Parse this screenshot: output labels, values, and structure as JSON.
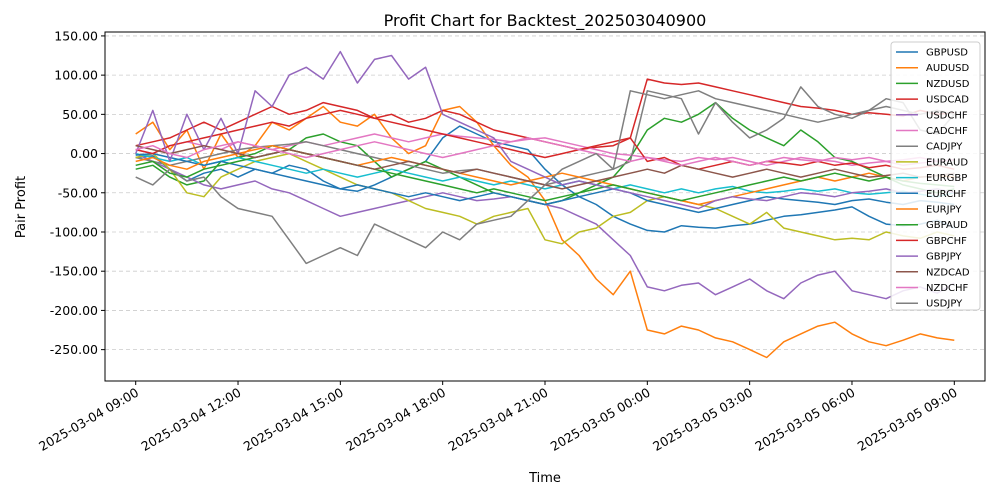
{
  "chart_data": {
    "type": "line",
    "title": "Profit Chart for Backtest_202503040900",
    "xlabel": "Time",
    "ylabel": "Pair Profit",
    "xlim": [
      "2025-03-04 08:06",
      "2025-03-05 09:54"
    ],
    "ylim": [
      -290,
      155
    ],
    "x_ticks": [
      "2025-03-04 09:00",
      "2025-03-04 12:00",
      "2025-03-04 15:00",
      "2025-03-04 18:00",
      "2025-03-04 21:00",
      "2025-03-05 00:00",
      "2025-03-05 03:00",
      "2025-03-05 06:00",
      "2025-03-05 09:00"
    ],
    "y_ticks": [
      "150.00",
      "100.00",
      "50.00",
      "0.00",
      "-50.00",
      "-100.00",
      "-150.00",
      "-200.00",
      "-250.00"
    ],
    "grid": "horizontal dashed",
    "legend_position": "top-right",
    "x": [
      "2025-03-04 09:00",
      "2025-03-04 09:30",
      "2025-03-04 10:00",
      "2025-03-04 10:30",
      "2025-03-04 11:00",
      "2025-03-04 11:30",
      "2025-03-04 12:00",
      "2025-03-04 12:30",
      "2025-03-04 13:00",
      "2025-03-04 13:30",
      "2025-03-04 14:00",
      "2025-03-04 14:30",
      "2025-03-04 15:00",
      "2025-03-04 15:30",
      "2025-03-04 16:00",
      "2025-03-04 16:30",
      "2025-03-04 17:00",
      "2025-03-04 17:30",
      "2025-03-04 18:00",
      "2025-03-04 18:30",
      "2025-03-04 19:00",
      "2025-03-04 19:30",
      "2025-03-04 20:00",
      "2025-03-04 20:30",
      "2025-03-04 21:00",
      "2025-03-04 21:30",
      "2025-03-04 22:00",
      "2025-03-04 22:30",
      "2025-03-04 23:00",
      "2025-03-04 23:30",
      "2025-03-05 00:00",
      "2025-03-05 00:30",
      "2025-03-05 01:00",
      "2025-03-05 01:30",
      "2025-03-05 02:00",
      "2025-03-05 02:30",
      "2025-03-05 03:00",
      "2025-03-05 03:30",
      "2025-03-05 04:00",
      "2025-03-05 04:30",
      "2025-03-05 05:00",
      "2025-03-05 05:30",
      "2025-03-05 06:00",
      "2025-03-05 06:30",
      "2025-03-05 07:00",
      "2025-03-05 07:30",
      "2025-03-05 08:00",
      "2025-03-05 08:30",
      "2025-03-05 09:00"
    ],
    "series": [
      {
        "name": "GBPUSD",
        "color": "#1f77b4",
        "values": [
          -5,
          -3,
          -20,
          -35,
          -25,
          -20,
          -30,
          -20,
          -25,
          -15,
          -20,
          -35,
          -45,
          -48,
          -40,
          -30,
          -20,
          -10,
          20,
          35,
          25,
          15,
          10,
          5,
          -20,
          -40,
          -55,
          -65,
          -80,
          -90,
          -98,
          -100,
          -92,
          -94,
          -95,
          -92,
          -90,
          -85,
          -80,
          -78,
          -75,
          -72,
          -68,
          -80,
          -90,
          -92,
          -90,
          -85,
          -95
        ]
      },
      {
        "name": "AUDUSD",
        "color": "#ff7f0e",
        "values": [
          25,
          40,
          5,
          30,
          -20,
          25,
          -5,
          10,
          40,
          30,
          45,
          60,
          40,
          35,
          50,
          20,
          0,
          10,
          55,
          60,
          40,
          10,
          -15,
          -30,
          -60,
          -110,
          -130,
          -160,
          -180,
          -150,
          -225,
          -230,
          -220,
          -225,
          -235,
          -240,
          -250,
          -260,
          -240,
          -230,
          -220,
          -215,
          -230,
          -240,
          -245,
          -238,
          -230,
          -235,
          -238
        ]
      },
      {
        "name": "NZDUSD",
        "color": "#2ca02c",
        "values": [
          -20,
          -15,
          -30,
          -40,
          -35,
          -10,
          -5,
          0,
          10,
          5,
          20,
          25,
          15,
          10,
          -10,
          -30,
          -20,
          -10,
          -20,
          -30,
          -40,
          -50,
          -55,
          -60,
          -65,
          -60,
          -50,
          -40,
          -30,
          -5,
          30,
          45,
          40,
          50,
          65,
          45,
          30,
          20,
          10,
          30,
          15,
          -5,
          -10,
          -20,
          -30,
          -40,
          -45,
          -50,
          -45
        ]
      },
      {
        "name": "USDCAD",
        "color": "#d62728",
        "values": [
          10,
          15,
          20,
          30,
          40,
          30,
          40,
          50,
          60,
          50,
          55,
          65,
          60,
          55,
          45,
          50,
          40,
          45,
          55,
          50,
          40,
          30,
          25,
          20,
          15,
          10,
          5,
          8,
          10,
          20,
          95,
          90,
          88,
          90,
          85,
          80,
          75,
          70,
          65,
          60,
          58,
          55,
          50,
          52,
          50,
          48,
          55,
          50,
          52
        ]
      },
      {
        "name": "USDCHF",
        "color": "#9467bd",
        "values": [
          0,
          -10,
          -20,
          -30,
          -40,
          -45,
          -40,
          -35,
          -45,
          -50,
          -60,
          -70,
          -80,
          -75,
          -70,
          -65,
          -60,
          -55,
          -50,
          -55,
          -60,
          -58,
          -55,
          -60,
          -65,
          -70,
          -80,
          -90,
          -110,
          -130,
          -170,
          -175,
          -168,
          -165,
          -180,
          -170,
          -160,
          -175,
          -185,
          -165,
          -155,
          -150,
          -175,
          -180,
          -185,
          -175,
          -170,
          -178,
          -165
        ]
      },
      {
        "name": "CADCHF",
        "color": "#e377c2",
        "values": [
          5,
          0,
          10,
          15,
          10,
          5,
          15,
          10,
          5,
          10,
          15,
          10,
          15,
          20,
          25,
          20,
          15,
          20,
          25,
          22,
          20,
          18,
          15,
          18,
          20,
          15,
          10,
          5,
          0,
          -2,
          -5,
          -8,
          -10,
          -5,
          -8,
          -5,
          -10,
          -15,
          -10,
          -5,
          -8,
          -10,
          -15,
          -12,
          -10,
          -15,
          -12,
          -10,
          -8
        ]
      },
      {
        "name": "CADJPY",
        "color": "#7f7f7f",
        "values": [
          -5,
          -10,
          -15,
          -10,
          -5,
          0,
          5,
          8,
          10,
          12,
          15,
          10,
          5,
          0,
          -5,
          -10,
          -15,
          -20,
          -25,
          -22,
          -20,
          -25,
          -30,
          -35,
          -40,
          -35,
          -30,
          -25,
          -20,
          -10,
          80,
          75,
          70,
          25,
          65,
          40,
          20,
          30,
          45,
          85,
          60,
          50,
          45,
          55,
          70,
          65,
          30,
          25,
          50
        ]
      },
      {
        "name": "EURAUD",
        "color": "#bcbd22",
        "values": [
          -5,
          0,
          -20,
          -50,
          -55,
          -30,
          -20,
          -10,
          -5,
          0,
          -10,
          -20,
          -30,
          -40,
          -45,
          -50,
          -60,
          -70,
          -75,
          -80,
          -90,
          -80,
          -75,
          -70,
          -110,
          -115,
          -100,
          -95,
          -80,
          -75,
          -60,
          -55,
          -60,
          -65,
          -70,
          -80,
          -90,
          -75,
          -95,
          -100,
          -105,
          -110,
          -108,
          -110,
          -100,
          -105,
          -108,
          -100,
          -105
        ]
      },
      {
        "name": "EURGBP",
        "color": "#17becf",
        "values": [
          0,
          -5,
          -10,
          -5,
          -15,
          -10,
          -5,
          -10,
          -15,
          -20,
          -25,
          -20,
          -25,
          -30,
          -25,
          -20,
          -25,
          -30,
          -35,
          -30,
          -35,
          -40,
          -35,
          -40,
          -45,
          -40,
          -35,
          -40,
          -45,
          -40,
          -45,
          -50,
          -45,
          -50,
          -45,
          -42,
          -48,
          -50,
          -48,
          -45,
          -48,
          -45,
          -50,
          -52,
          -50,
          -48,
          -52,
          -55,
          -50
        ]
      },
      {
        "name": "EURCHF",
        "color": "#1f77b4",
        "values": [
          -2,
          0,
          -5,
          -10,
          -15,
          -10,
          -15,
          -20,
          -25,
          -30,
          -35,
          -40,
          -45,
          -40,
          -45,
          -50,
          -55,
          -50,
          -55,
          -60,
          -55,
          -50,
          -55,
          -60,
          -65,
          -60,
          -55,
          -50,
          -45,
          -50,
          -60,
          -65,
          -70,
          -75,
          -70,
          -65,
          -60,
          -55,
          -58,
          -60,
          -62,
          -65,
          -60,
          -58,
          -62,
          -65,
          -60,
          -62,
          -65
        ]
      },
      {
        "name": "EURJPY",
        "color": "#ff7f0e",
        "values": [
          -10,
          -5,
          -15,
          -20,
          -10,
          -5,
          0,
          5,
          10,
          5,
          0,
          -5,
          -10,
          -15,
          -10,
          -5,
          -10,
          -15,
          -20,
          -25,
          -30,
          -35,
          -40,
          -35,
          -30,
          -25,
          -30,
          -35,
          -40,
          -45,
          -50,
          -55,
          -60,
          -65,
          -60,
          -55,
          -50,
          -45,
          -40,
          -35,
          -30,
          -35,
          -30,
          -25,
          -30,
          -35,
          -30,
          -28,
          -30
        ]
      },
      {
        "name": "GBPAUD",
        "color": "#2ca02c",
        "values": [
          -15,
          -10,
          -25,
          -30,
          -20,
          -15,
          -10,
          -5,
          0,
          5,
          0,
          -5,
          -10,
          -15,
          -20,
          -25,
          -30,
          -35,
          -40,
          -45,
          -50,
          -45,
          -50,
          -55,
          -60,
          -55,
          -50,
          -45,
          -40,
          -45,
          -50,
          -55,
          -60,
          -55,
          -50,
          -45,
          -40,
          -35,
          -30,
          -35,
          -30,
          -25,
          -30,
          -35,
          -30,
          -35,
          -38,
          -40,
          -42
        ]
      },
      {
        "name": "GBPCHF",
        "color": "#d62728",
        "values": [
          5,
          0,
          10,
          15,
          20,
          25,
          30,
          35,
          40,
          35,
          45,
          50,
          55,
          50,
          45,
          40,
          35,
          30,
          25,
          20,
          15,
          10,
          5,
          0,
          -5,
          0,
          5,
          10,
          15,
          20,
          -10,
          -5,
          -15,
          -20,
          -15,
          -10,
          -15,
          -10,
          -12,
          -15,
          -10,
          -15,
          -12,
          -18,
          -15,
          -20,
          -18,
          -15,
          -20
        ]
      },
      {
        "name": "GBPJPY",
        "color": "#9467bd",
        "values": [
          0,
          55,
          -10,
          50,
          5,
          45,
          0,
          80,
          60,
          100,
          110,
          95,
          130,
          90,
          120,
          125,
          95,
          110,
          50,
          40,
          30,
          20,
          -10,
          -20,
          -30,
          -40,
          -35,
          -40,
          -45,
          -50,
          -55,
          -60,
          -65,
          -70,
          -60,
          -55,
          -58,
          -60,
          -55,
          -50,
          -52,
          -55,
          -50,
          -48,
          -45,
          -50,
          -48,
          -45,
          -50
        ]
      },
      {
        "name": "NZDCAD",
        "color": "#8c564b",
        "values": [
          10,
          5,
          0,
          5,
          10,
          5,
          0,
          -5,
          0,
          5,
          0,
          -5,
          -10,
          -15,
          -20,
          -15,
          -10,
          -15,
          -20,
          -25,
          -20,
          -25,
          -30,
          -35,
          -40,
          -45,
          -40,
          -35,
          -30,
          -25,
          -20,
          -25,
          -15,
          -20,
          -25,
          -30,
          -25,
          -20,
          -25,
          -30,
          -25,
          -20,
          -25,
          -30,
          -28,
          -25,
          -30,
          -28,
          -25
        ]
      },
      {
        "name": "NZDCHF",
        "color": "#e377c2",
        "values": [
          5,
          10,
          0,
          -5,
          5,
          10,
          15,
          10,
          5,
          0,
          -5,
          0,
          5,
          10,
          15,
          10,
          5,
          0,
          -5,
          0,
          5,
          10,
          15,
          20,
          15,
          10,
          5,
          0,
          -5,
          -10,
          -5,
          -10,
          -15,
          -10,
          -5,
          -10,
          -15,
          -10,
          -5,
          -8,
          -10,
          -5,
          -8,
          -5,
          -10,
          -8,
          -5,
          -10,
          -8
        ]
      },
      {
        "name": "USDJPY",
        "color": "#7f7f7f",
        "values": [
          -30,
          -40,
          -20,
          -35,
          -30,
          -55,
          -70,
          -75,
          -80,
          -110,
          -140,
          -130,
          -120,
          -130,
          -90,
          -100,
          -110,
          -120,
          -100,
          -110,
          -90,
          -85,
          -80,
          -60,
          -40,
          -20,
          -10,
          0,
          -20,
          80,
          75,
          70,
          75,
          80,
          70,
          65,
          60,
          55,
          50,
          45,
          40,
          45,
          50,
          55,
          60,
          55,
          50,
          55,
          50
        ]
      }
    ]
  }
}
